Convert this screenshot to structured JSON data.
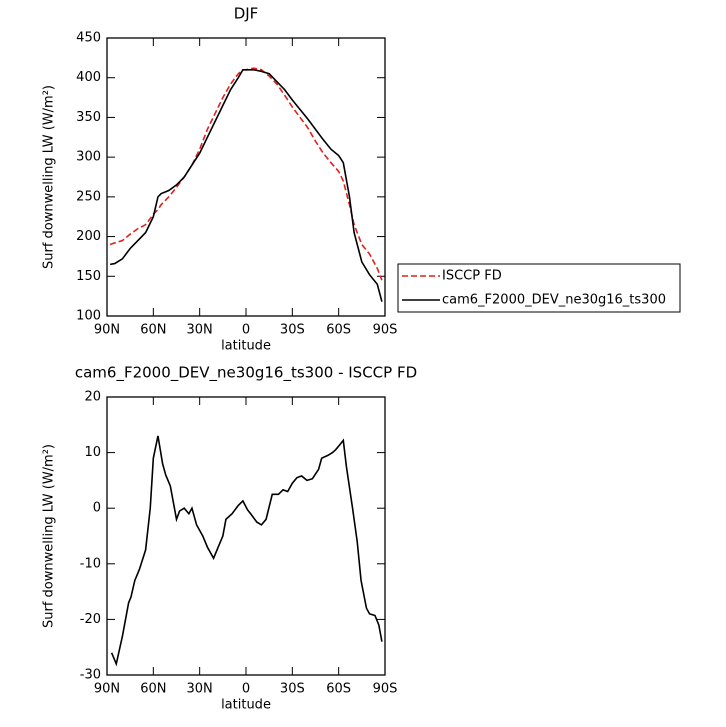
{
  "chart_data": [
    {
      "type": "line",
      "title": "DJF",
      "xlabel": "latitude",
      "ylabel": "Surf downwelling LW (W/m²)",
      "xlim": [
        90,
        -90
      ],
      "ylim": [
        100,
        450
      ],
      "xticks": [
        {
          "value": 90,
          "label": "90N"
        },
        {
          "value": 60,
          "label": "60N"
        },
        {
          "value": 30,
          "label": "30N"
        },
        0,
        {
          "value": -30,
          "label": "30S"
        },
        {
          "value": -60,
          "label": "60S"
        },
        {
          "value": -90,
          "label": "90S"
        }
      ],
      "yticks": [
        100,
        150,
        200,
        250,
        300,
        350,
        400,
        450
      ],
      "legend": "right",
      "x": [
        88,
        85,
        80,
        75,
        70,
        65,
        60,
        57,
        55,
        50,
        45,
        40,
        35,
        30,
        25,
        20,
        15,
        10,
        5,
        2,
        0,
        -5,
        -10,
        -15,
        -20,
        -25,
        -30,
        -35,
        -40,
        -45,
        -50,
        -55,
        -60,
        -63,
        -67,
        -70,
        -75,
        -80,
        -85,
        -88
      ],
      "series": [
        {
          "name": "ISCCP FD",
          "color": "#e0201c",
          "dashed": true,
          "values": [
            190,
            192,
            195,
            203,
            210,
            215,
            228,
            234,
            240,
            250,
            262,
            275,
            290,
            310,
            335,
            355,
            375,
            392,
            405,
            410,
            410,
            412,
            410,
            402,
            392,
            378,
            363,
            350,
            337,
            320,
            305,
            293,
            282,
            270,
            240,
            215,
            190,
            178,
            160,
            145
          ]
        },
        {
          "name": "cam6_F2000_DEV_ne30g16_ts300",
          "color": "#000000",
          "dashed": false,
          "values": [
            165,
            166,
            172,
            185,
            195,
            205,
            225,
            250,
            254,
            258,
            265,
            275,
            290,
            305,
            325,
            345,
            365,
            385,
            400,
            410,
            410,
            410,
            408,
            405,
            395,
            385,
            372,
            360,
            348,
            335,
            322,
            310,
            302,
            293,
            250,
            205,
            168,
            152,
            140,
            118
          ]
        }
      ]
    },
    {
      "type": "line",
      "title": "cam6_F2000_DEV_ne30g16_ts300 - ISCCP FD",
      "xlabel": "latitude",
      "ylabel": "Surf downwelling LW (W/m²)",
      "xlim": [
        90,
        -90
      ],
      "ylim": [
        -30,
        20
      ],
      "xticks": [
        {
          "value": 90,
          "label": "90N"
        },
        {
          "value": 60,
          "label": "60N"
        },
        {
          "value": 30,
          "label": "30N"
        },
        0,
        {
          "value": -30,
          "label": "30S"
        },
        {
          "value": -60,
          "label": "60S"
        },
        {
          "value": -90,
          "label": "90S"
        }
      ],
      "yticks": [
        -30,
        -20,
        -10,
        0,
        10,
        20
      ],
      "x": [
        87,
        84,
        80,
        76,
        74.5,
        72,
        69,
        65,
        62,
        60,
        57,
        54,
        52,
        49,
        45,
        43,
        40,
        37,
        35,
        32,
        28,
        25,
        21,
        18,
        15,
        13,
        9,
        5,
        2,
        -1,
        -3,
        -7,
        -10,
        -13,
        -17,
        -21,
        -24,
        -27,
        -30,
        -33,
        -36,
        -39.5,
        -43,
        -47,
        -49,
        -53,
        -56,
        -58,
        -61,
        -63,
        -65,
        -69,
        -72,
        -74.5,
        -78,
        -80,
        -83.5,
        -86,
        -88
      ],
      "series": [
        {
          "color": "#000000",
          "dashed": false,
          "values": [
            -26,
            -28,
            -23,
            -17,
            -16,
            -13,
            -11,
            -7.5,
            0,
            9,
            13,
            8,
            6,
            4,
            -2,
            -0.5,
            0,
            -1,
            0,
            -3,
            -5,
            -7,
            -9,
            -7,
            -5,
            -2,
            -1,
            0.5,
            1.3,
            -0.3,
            -1,
            -2.5,
            -3,
            -2,
            2.5,
            2.5,
            3.3,
            3,
            4.5,
            5.5,
            5.8,
            5,
            5.3,
            7,
            9,
            9.5,
            10,
            10.5,
            11.5,
            12.2,
            7.5,
            0,
            -6,
            -13,
            -18,
            -19,
            -19.3,
            -21,
            -24
          ]
        }
      ]
    }
  ]
}
